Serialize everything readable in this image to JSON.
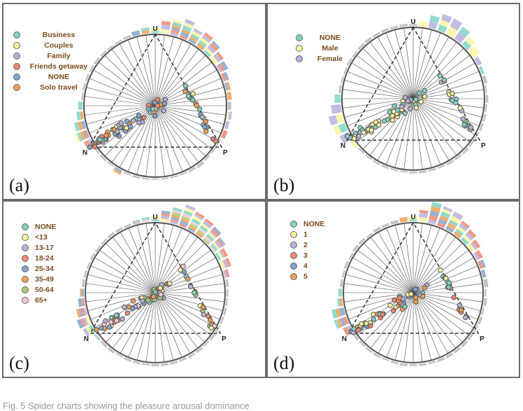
{
  "figure": {
    "caption": "Fig. 5  Spider charts showing the pleasure arousal dominance"
  },
  "chart_data": [
    {
      "type": "scatter",
      "panel_label": "(a)",
      "vertex_labels": {
        "u": "U",
        "n": "N",
        "p": "P"
      },
      "legend": [
        "Business",
        "Couples",
        "Family",
        "Friends getaway",
        "NONE",
        "Solo travel"
      ],
      "colors": [
        "#7fd3c4",
        "#fbf4a0",
        "#b8b0dc",
        "#f08870",
        "#7fa6d0",
        "#f2a050"
      ],
      "spokes": 48,
      "rose_profile": [
        0.3,
        0.55,
        0.95,
        1,
        0.85,
        0.9,
        0.8,
        0.55,
        0.5,
        0.3,
        0.3,
        0.2,
        0.15,
        0.25,
        0.2,
        0.2,
        0.1,
        0.1,
        0.1,
        0.15,
        0.1,
        0.1,
        0.1,
        0.1,
        0.1,
        0.1,
        0.1,
        0.1,
        0.25,
        0.1,
        0.1,
        0.1,
        0.4,
        0.75,
        0.55,
        0.35,
        0.2,
        0.1,
        0.1,
        0.1,
        0.1,
        0.1,
        0.1,
        0.1,
        0.1,
        0.15,
        0.2,
        0.25
      ],
      "point_density": 1.0
    },
    {
      "type": "scatter",
      "panel_label": "(b)",
      "vertex_labels": {
        "u": "U",
        "n": "N",
        "p": "P"
      },
      "legend": [
        "NONE",
        "Male",
        "Female"
      ],
      "colors": [
        "#7fd3c4",
        "#fbf4a0",
        "#b8b0dc"
      ],
      "spokes": 48,
      "rose_profile": [
        0.15,
        0.35,
        0.75,
        0.95,
        0.8,
        0.6,
        0.5,
        0.35,
        0.25,
        0.2,
        0.15,
        0.1,
        0.1,
        0.1,
        0.1,
        0.1,
        0.1,
        0.1,
        0.1,
        0.1,
        0.1,
        0.1,
        0.1,
        0.1,
        0.1,
        0.1,
        0.1,
        0.1,
        0.1,
        0.1,
        0.1,
        0.2,
        0.45,
        0.75,
        0.65,
        0.4,
        0.25,
        0.15,
        0.1,
        0.1,
        0.1,
        0.1,
        0.1,
        0.1,
        0.1,
        0.1,
        0.1,
        0.1
      ],
      "point_density": 1.0
    },
    {
      "type": "scatter",
      "panel_label": "(c)",
      "vertex_labels": {
        "u": "U",
        "n": "N",
        "p": "P"
      },
      "legend": [
        "NONE",
        "<13",
        "13-17",
        "18-24",
        "25-34",
        "35-49",
        "50-64",
        "65+"
      ],
      "colors": [
        "#7fd3c4",
        "#fbf4a0",
        "#b8b0dc",
        "#f08870",
        "#7fa6d0",
        "#f2a050",
        "#a8d070",
        "#f8c8d8"
      ],
      "spokes": 48,
      "rose_profile": [
        0.3,
        0.55,
        0.85,
        1,
        0.95,
        0.9,
        0.85,
        0.7,
        0.55,
        0.4,
        0.25,
        0.15,
        0.1,
        0.1,
        0.1,
        0.1,
        0.1,
        0.1,
        0.1,
        0.1,
        0.1,
        0.1,
        0.1,
        0.1,
        0.1,
        0.1,
        0.1,
        0.1,
        0.1,
        0.1,
        0.1,
        0.2,
        0.4,
        0.55,
        0.45,
        0.3,
        0.2,
        0.15,
        0.1,
        0.1,
        0.1,
        0.1,
        0.1,
        0.1,
        0.1,
        0.1,
        0.15,
        0.2
      ],
      "point_density": 0.9
    },
    {
      "type": "scatter",
      "panel_label": "(d)",
      "vertex_labels": {
        "u": "U",
        "n": "N",
        "p": "P"
      },
      "legend": [
        "NONE",
        "1",
        "2",
        "3",
        "4",
        "5"
      ],
      "colors": [
        "#7fd3c4",
        "#fbf4a0",
        "#b8b0dc",
        "#f08870",
        "#7fa6d0",
        "#f2a050"
      ],
      "spokes": 48,
      "rose_profile": [
        0.25,
        0.5,
        0.85,
        1,
        0.9,
        0.8,
        0.7,
        0.55,
        0.4,
        0.3,
        0.2,
        0.15,
        0.1,
        0.1,
        0.1,
        0.1,
        0.1,
        0.1,
        0.1,
        0.1,
        0.1,
        0.1,
        0.1,
        0.1,
        0.1,
        0.1,
        0.1,
        0.1,
        0.1,
        0.1,
        0.1,
        0.15,
        0.35,
        0.6,
        0.5,
        0.3,
        0.2,
        0.1,
        0.1,
        0.1,
        0.1,
        0.1,
        0.1,
        0.1,
        0.1,
        0.1,
        0.15,
        0.2
      ],
      "point_density": 0.85
    }
  ]
}
